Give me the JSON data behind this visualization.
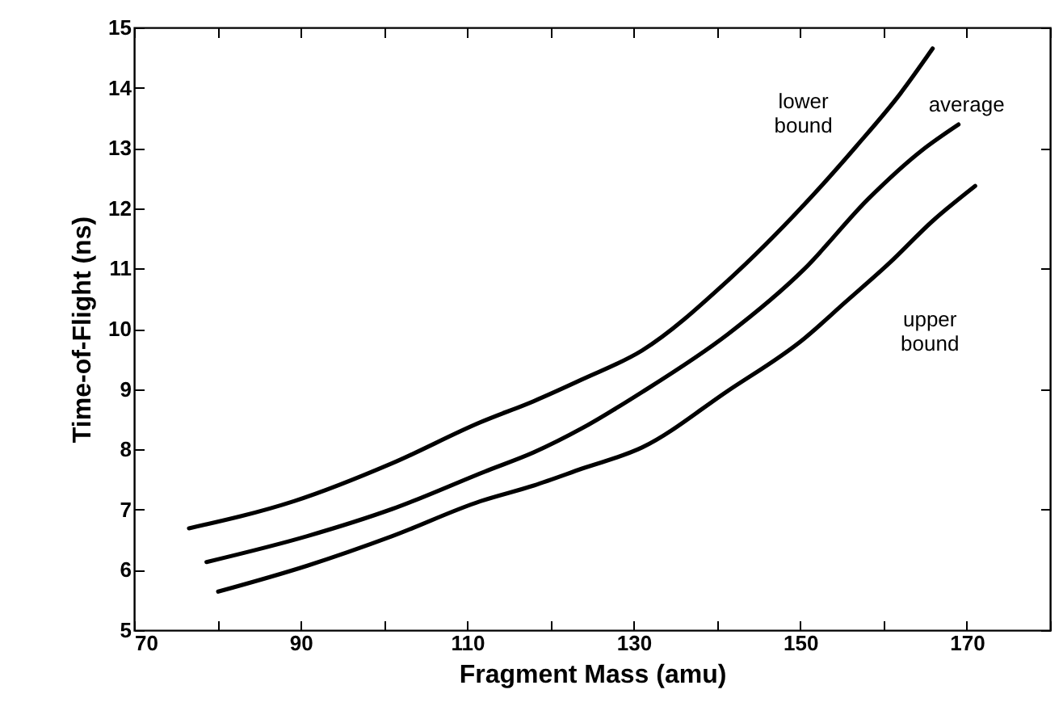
{
  "chart_data": {
    "type": "line",
    "xlabel": "Fragment Mass  (amu)",
    "ylabel": "Time-of-Flight (ns)",
    "xlim": [
      70,
      180
    ],
    "ylim": [
      5,
      15
    ],
    "xticks": [
      70,
      {
        "value": 80,
        "label": null
      },
      90,
      {
        "value": 100,
        "label": null
      },
      110,
      {
        "value": 120,
        "label": null
      },
      130,
      {
        "value": 140,
        "label": null
      },
      150,
      {
        "value": 160,
        "label": null
      },
      170,
      {
        "value": 180,
        "label": null
      }
    ],
    "yticks": [
      5,
      6,
      7,
      8,
      9,
      10,
      11,
      12,
      13,
      14,
      15
    ],
    "grid": false,
    "series": [
      {
        "name": "lower bound",
        "color": "#000000",
        "x": [
          76.6,
          89.2,
          101,
          111.6,
          118,
          123.8,
          131,
          141.3,
          150.4,
          156.8,
          162,
          165.9
        ],
        "values": [
          6.69,
          7.14,
          7.77,
          8.45,
          8.8,
          9.16,
          9.64,
          10.8,
          12.05,
          13.04,
          13.9,
          14.65
        ]
      },
      {
        "name": "average",
        "color": "#000000",
        "x": [
          78.7,
          90.8,
          101,
          112.1,
          118,
          123.8,
          131,
          141.3,
          150.4,
          158.2,
          164.6,
          169
        ],
        "values": [
          6.13,
          6.56,
          7.01,
          7.63,
          7.95,
          8.35,
          8.95,
          9.91,
          10.98,
          12.16,
          12.96,
          13.39
        ]
      },
      {
        "name": "upper bound",
        "color": "#000000",
        "x": [
          80.1,
          90.8,
          101,
          111.6,
          118,
          123.8,
          131,
          141.3,
          150.4,
          155.4,
          160.7,
          165.9,
          171
        ],
        "values": [
          5.64,
          6.07,
          6.56,
          7.14,
          7.4,
          7.68,
          8.03,
          8.97,
          9.83,
          10.44,
          11.09,
          11.79,
          12.37
        ]
      }
    ]
  }
}
